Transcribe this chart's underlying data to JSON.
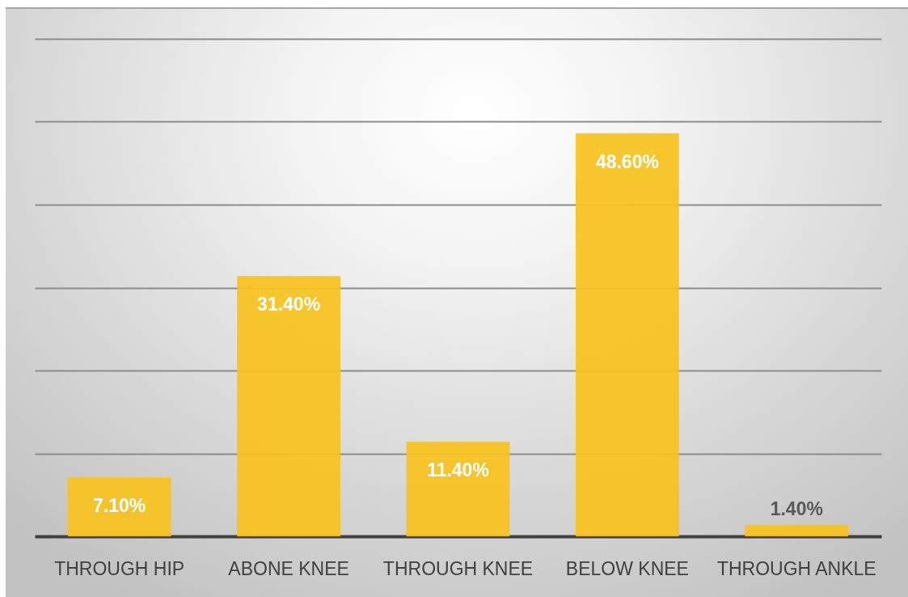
{
  "chart_data": {
    "type": "bar",
    "categories": [
      "THROUGH HIP",
      "ABONE KNEE",
      "THROUGH KNEE",
      "BELOW KNEE",
      "THROUGH ANKLE"
    ],
    "values": [
      7.1,
      31.4,
      11.4,
      48.6,
      1.4
    ],
    "value_labels": [
      "7.10%",
      "31.40%",
      "11.40%",
      "48.60%",
      "1.40%"
    ],
    "color": "#f8c21f",
    "ylim": [
      0,
      60
    ],
    "yticks": [
      0,
      10,
      20,
      30,
      40,
      50,
      60
    ],
    "grid": "y",
    "tick_labels": "x"
  }
}
